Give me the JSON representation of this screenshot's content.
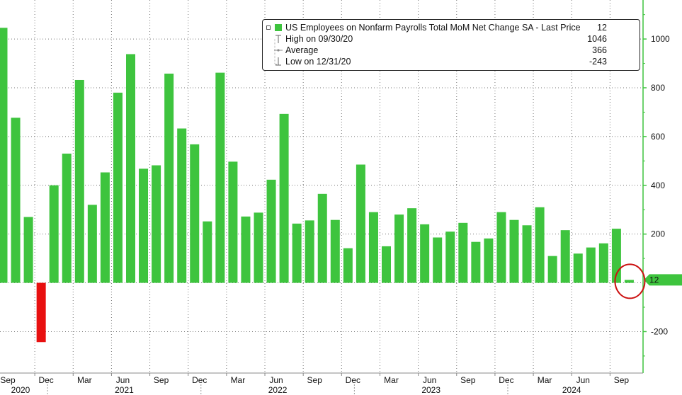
{
  "colors": {
    "bar_positive": "#3ec43e",
    "bar_negative": "#e81010",
    "axis_line": "#3ec43e",
    "grid": "#777777",
    "highlight_circle": "#cc1111"
  },
  "legend": {
    "series_label": "US Employees on Nonfarm Payrolls Total MoM Net Change SA - Last Price",
    "series_value": "12",
    "high_label": "High on 09/30/20",
    "high_value": "1046",
    "average_label": "Average",
    "average_value": "366",
    "low_label": "Low on 12/31/20",
    "low_value": "-243"
  },
  "chart_data": {
    "type": "bar",
    "ylim": [
      -370,
      1160
    ],
    "yticks": [
      -200,
      200,
      400,
      600,
      800,
      1000
    ],
    "last_value_label": "12",
    "x_tick_labels": [
      "Sep",
      "Dec",
      "Mar",
      "Jun",
      "Sep",
      "Dec",
      "Mar",
      "Jun",
      "Sep",
      "Dec",
      "Mar",
      "Jun",
      "Sep",
      "Dec",
      "Mar",
      "Jun",
      "Sep"
    ],
    "year_labels": [
      "2020",
      "2021",
      "2022",
      "2023",
      "2024"
    ],
    "categories": [
      "2020-09",
      "2020-10",
      "2020-11",
      "2020-12",
      "2021-01",
      "2021-02",
      "2021-03",
      "2021-04",
      "2021-05",
      "2021-06",
      "2021-07",
      "2021-08",
      "2021-09",
      "2021-10",
      "2021-11",
      "2021-12",
      "2022-01",
      "2022-02",
      "2022-03",
      "2022-04",
      "2022-05",
      "2022-06",
      "2022-07",
      "2022-08",
      "2022-09",
      "2022-10",
      "2022-11",
      "2022-12",
      "2023-01",
      "2023-02",
      "2023-03",
      "2023-04",
      "2023-05",
      "2023-06",
      "2023-07",
      "2023-08",
      "2023-09",
      "2023-10",
      "2023-11",
      "2023-12",
      "2024-01",
      "2024-02",
      "2024-03",
      "2024-04",
      "2024-05",
      "2024-06",
      "2024-07",
      "2024-08",
      "2024-09",
      "2024-10"
    ],
    "values": [
      1046,
      677,
      270,
      -243,
      400,
      530,
      832,
      320,
      453,
      780,
      938,
      468,
      482,
      858,
      633,
      568,
      252,
      862,
      497,
      272,
      288,
      423,
      693,
      243,
      256,
      365,
      258,
      142,
      485,
      290,
      150,
      280,
      306,
      240,
      186,
      210,
      246,
      168,
      182,
      290,
      258,
      236,
      310,
      110,
      216,
      120,
      145,
      162,
      222,
      12
    ]
  }
}
